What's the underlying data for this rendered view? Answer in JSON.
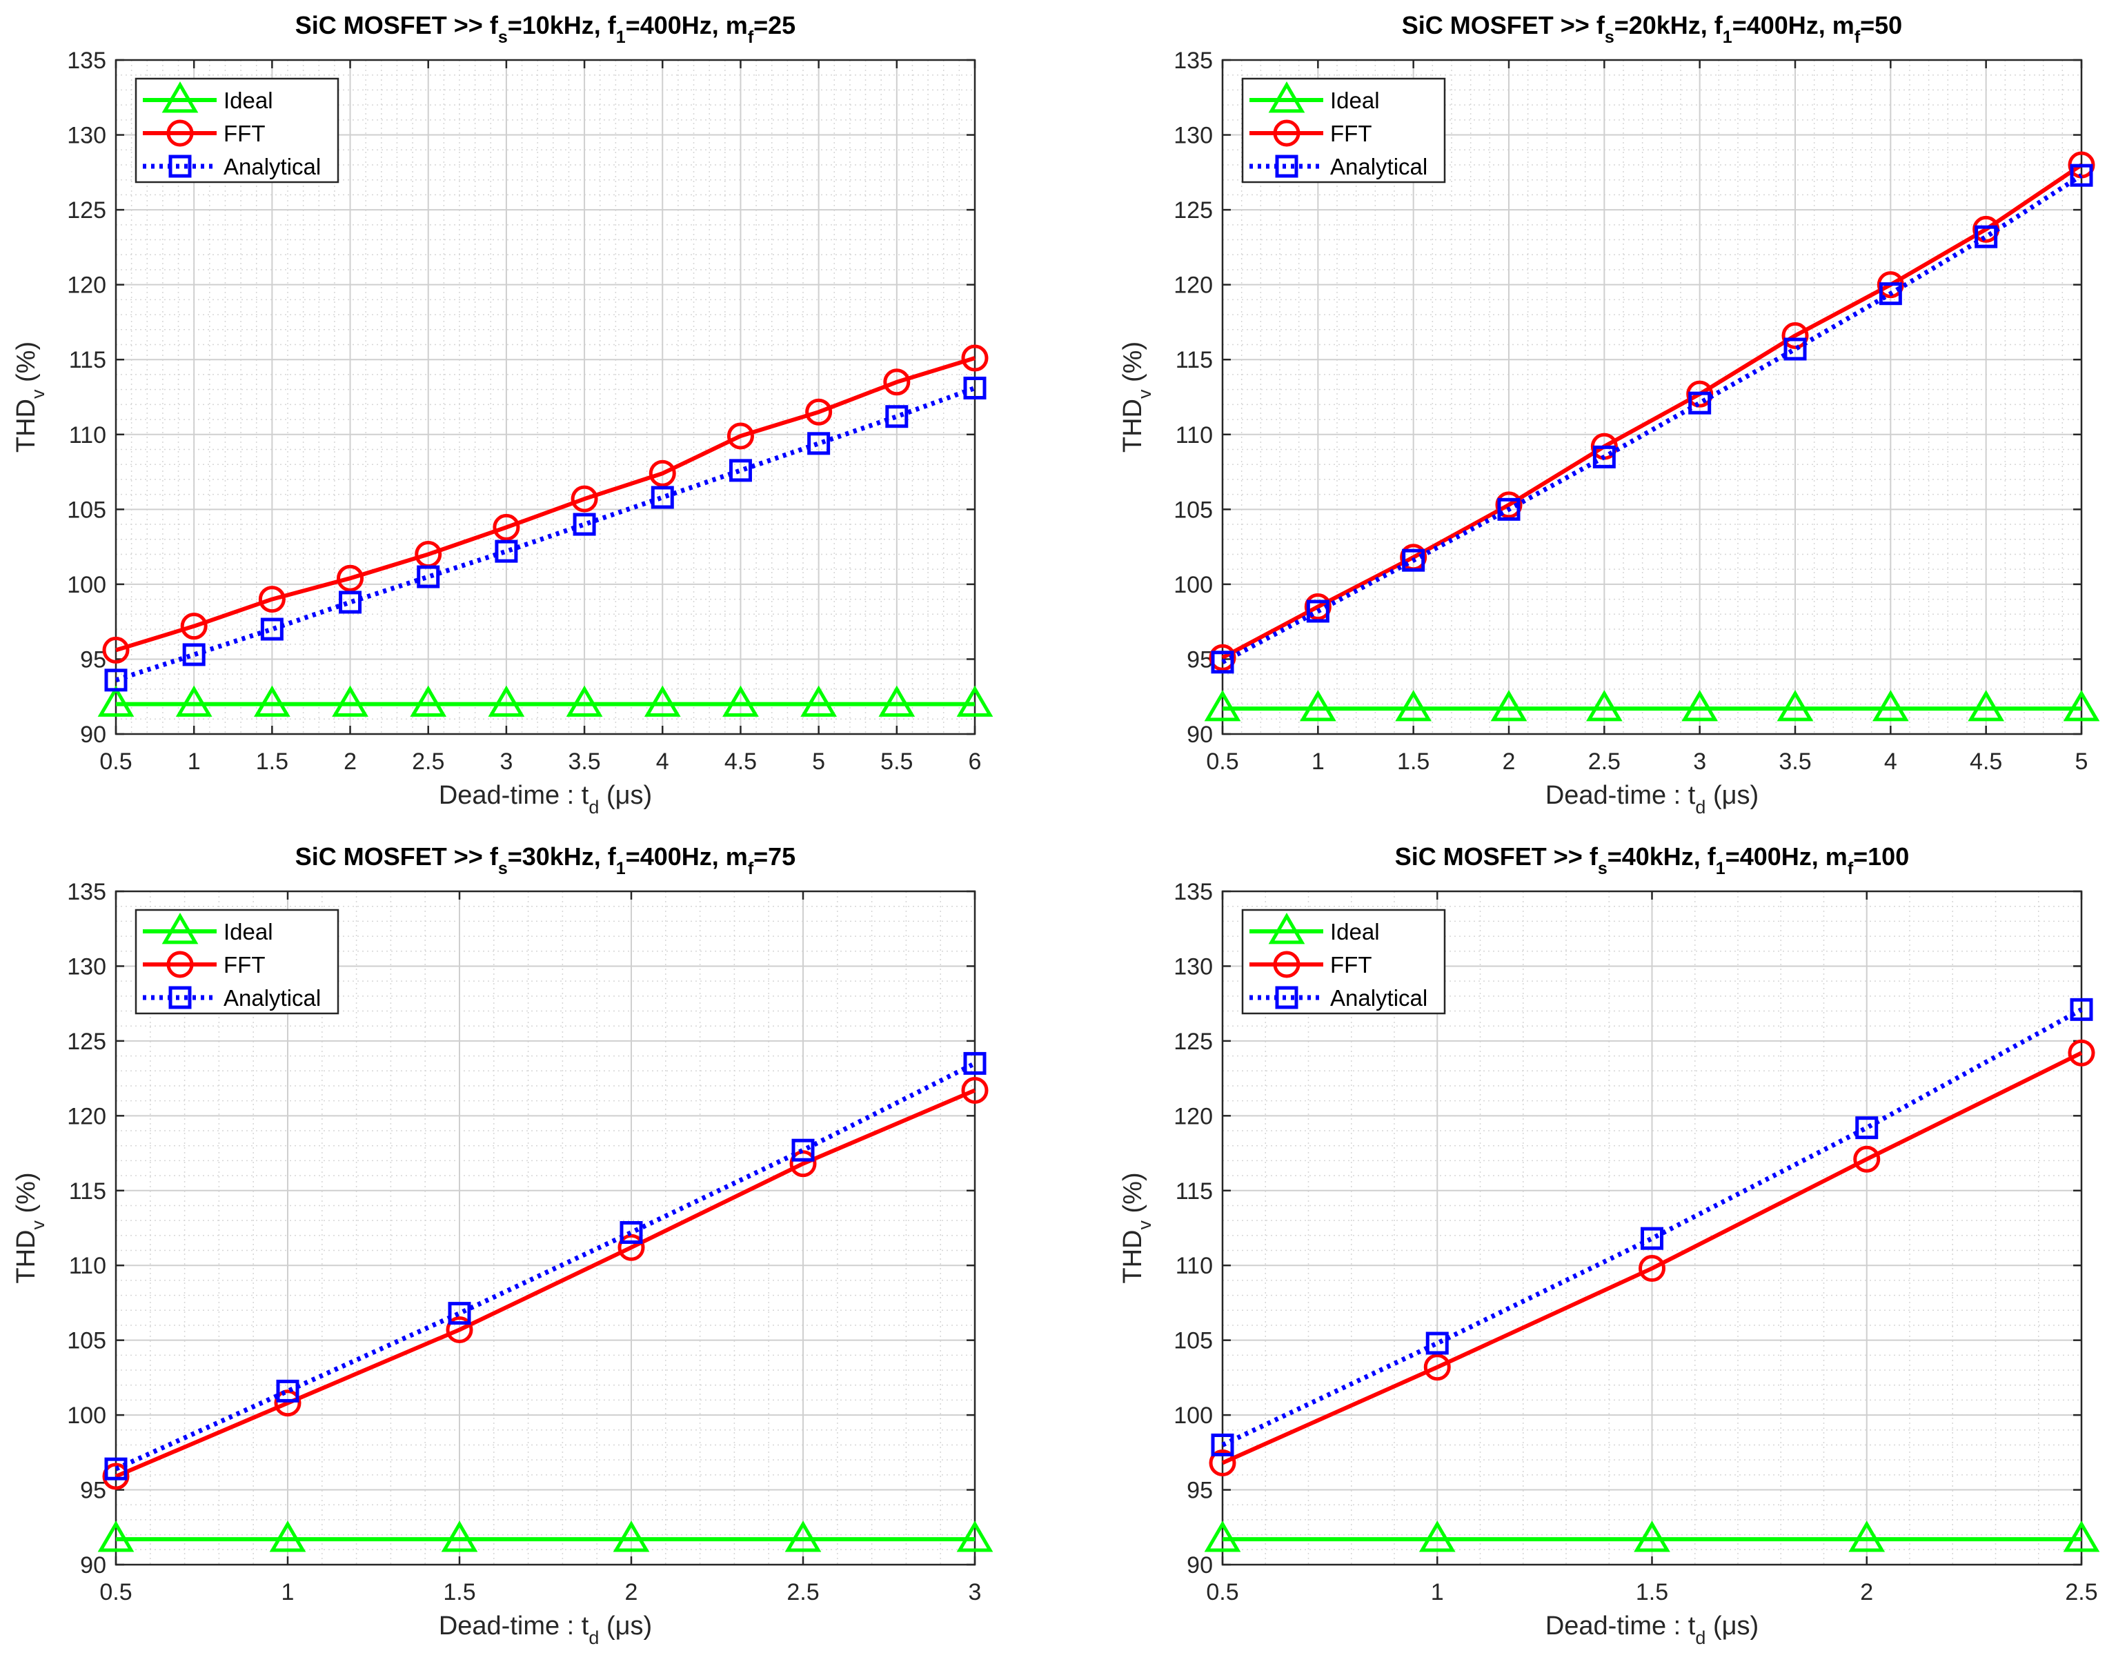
{
  "chart_data": [
    {
      "type": "line",
      "title": {
        "prefix": "SiC MOSFET >> f",
        "sub1": "s",
        "mid1": "=10kHz, f",
        "sub2": "1",
        "mid2": "=400Hz, m",
        "sub3": "f",
        "suffix": "=25"
      },
      "xlabel": {
        "prefix": "Dead-time : t",
        "sub": "d",
        "suffix": " (μs)"
      },
      "ylabel": {
        "prefix": "THD",
        "sub": "v",
        "suffix": " (%)"
      },
      "xlim": [
        0.5,
        6
      ],
      "ylim": [
        90,
        135
      ],
      "xticks": [
        0.5,
        1,
        1.5,
        2,
        2.5,
        3,
        3.5,
        4,
        4.5,
        5,
        5.5,
        6
      ],
      "yticks": [
        90,
        95,
        100,
        105,
        110,
        115,
        120,
        125,
        130,
        135
      ],
      "grid": true,
      "legend_position": "top-left",
      "x": [
        0.5,
        1,
        1.5,
        2,
        2.5,
        3,
        3.5,
        4,
        4.5,
        5,
        5.5,
        6
      ],
      "series": [
        {
          "name": "Ideal",
          "values": [
            92.0,
            92.0,
            92.0,
            92.0,
            92.0,
            92.0,
            92.0,
            92.0,
            92.0,
            92.0,
            92.0,
            92.0
          ]
        },
        {
          "name": "FFT",
          "values": [
            95.6,
            97.2,
            99.0,
            100.4,
            102.0,
            103.8,
            105.7,
            107.4,
            109.9,
            111.5,
            113.5,
            115.1
          ]
        },
        {
          "name": "Analytical",
          "values": [
            93.6,
            95.3,
            97.0,
            98.8,
            100.5,
            102.2,
            104.0,
            105.8,
            107.6,
            109.4,
            111.2,
            113.1
          ]
        }
      ]
    },
    {
      "type": "line",
      "title": {
        "prefix": "SiC MOSFET >> f",
        "sub1": "s",
        "mid1": "=20kHz, f",
        "sub2": "1",
        "mid2": "=400Hz, m",
        "sub3": "f",
        "suffix": "=50"
      },
      "xlabel": {
        "prefix": "Dead-time : t",
        "sub": "d",
        "suffix": " (μs)"
      },
      "ylabel": {
        "prefix": "THD",
        "sub": "v",
        "suffix": " (%)"
      },
      "xlim": [
        0.5,
        5
      ],
      "ylim": [
        90,
        135
      ],
      "xticks": [
        0.5,
        1,
        1.5,
        2,
        2.5,
        3,
        3.5,
        4,
        4.5,
        5
      ],
      "yticks": [
        90,
        95,
        100,
        105,
        110,
        115,
        120,
        125,
        130,
        135
      ],
      "grid": true,
      "legend_position": "top-left",
      "x": [
        0.5,
        1,
        1.5,
        2,
        2.5,
        3,
        3.5,
        4,
        4.5,
        5
      ],
      "series": [
        {
          "name": "Ideal",
          "values": [
            91.7,
            91.7,
            91.7,
            91.7,
            91.7,
            91.7,
            91.7,
            91.7,
            91.7,
            91.7
          ]
        },
        {
          "name": "FFT",
          "values": [
            95.1,
            98.5,
            101.8,
            105.3,
            109.2,
            112.7,
            116.6,
            120.0,
            123.7,
            128.0
          ]
        },
        {
          "name": "Analytical",
          "values": [
            94.8,
            98.2,
            101.6,
            105.0,
            108.5,
            112.1,
            115.7,
            119.4,
            123.2,
            127.3
          ]
        }
      ]
    },
    {
      "type": "line",
      "title": {
        "prefix": "SiC MOSFET >> f",
        "sub1": "s",
        "mid1": "=30kHz, f",
        "sub2": "1",
        "mid2": "=400Hz, m",
        "sub3": "f",
        "suffix": "=75"
      },
      "xlabel": {
        "prefix": "Dead-time : t",
        "sub": "d",
        "suffix": " (μs)"
      },
      "ylabel": {
        "prefix": "THD",
        "sub": "v",
        "suffix": " (%)"
      },
      "xlim": [
        0.5,
        3
      ],
      "ylim": [
        90,
        135
      ],
      "xticks": [
        0.5,
        1,
        1.5,
        2,
        2.5,
        3
      ],
      "yticks": [
        90,
        95,
        100,
        105,
        110,
        115,
        120,
        125,
        130,
        135
      ],
      "grid": true,
      "legend_position": "top-left",
      "x": [
        0.5,
        1,
        1.5,
        2,
        2.5,
        3
      ],
      "series": [
        {
          "name": "Ideal",
          "values": [
            91.7,
            91.7,
            91.7,
            91.7,
            91.7,
            91.7
          ]
        },
        {
          "name": "FFT",
          "values": [
            95.9,
            100.8,
            105.7,
            111.2,
            116.8,
            121.7
          ]
        },
        {
          "name": "Analytical",
          "values": [
            96.4,
            101.6,
            106.8,
            112.2,
            117.7,
            123.5
          ]
        }
      ]
    },
    {
      "type": "line",
      "title": {
        "prefix": "SiC MOSFET >> f",
        "sub1": "s",
        "mid1": "=40kHz, f",
        "sub2": "1",
        "mid2": "=400Hz, m",
        "sub3": "f",
        "suffix": "=100"
      },
      "xlabel": {
        "prefix": "Dead-time : t",
        "sub": "d",
        "suffix": " (μs)"
      },
      "ylabel": {
        "prefix": "THD",
        "sub": "v",
        "suffix": " (%)"
      },
      "xlim": [
        0.5,
        2.5
      ],
      "ylim": [
        90,
        135
      ],
      "xticks": [
        0.5,
        1,
        1.5,
        2,
        2.5
      ],
      "yticks": [
        90,
        95,
        100,
        105,
        110,
        115,
        120,
        125,
        130,
        135
      ],
      "grid": true,
      "legend_position": "top-left",
      "x": [
        0.5,
        1,
        1.5,
        2,
        2.5
      ],
      "series": [
        {
          "name": "Ideal",
          "values": [
            91.7,
            91.7,
            91.7,
            91.7,
            91.7
          ]
        },
        {
          "name": "FFT",
          "values": [
            96.8,
            103.2,
            109.8,
            117.1,
            124.2
          ]
        },
        {
          "name": "Analytical",
          "values": [
            98.0,
            104.8,
            111.8,
            119.2,
            127.1
          ]
        }
      ]
    }
  ],
  "series_styles": [
    {
      "color": "#00ff00",
      "marker": "triangle",
      "line": "solid"
    },
    {
      "color": "#ff0000",
      "marker": "circle",
      "line": "solid"
    },
    {
      "color": "#0000ff",
      "marker": "square",
      "line": "dotted"
    }
  ]
}
